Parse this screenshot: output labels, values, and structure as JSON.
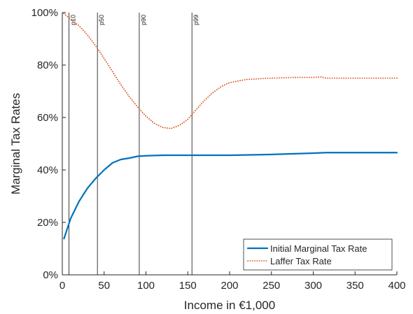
{
  "chart_data": {
    "type": "line",
    "xlabel": "Income in €1,000",
    "ylabel": "Marginal Tax Rates",
    "xlim": [
      0,
      400
    ],
    "ylim": [
      0,
      100
    ],
    "x_ticks": [
      0,
      50,
      100,
      150,
      200,
      250,
      300,
      350,
      400
    ],
    "y_ticks": [
      0,
      20,
      40,
      60,
      80,
      100
    ],
    "y_tick_format": "percent",
    "grid": false,
    "legend_position": "bottom-right",
    "percentile_markers": [
      {
        "label": "p10",
        "x": 8
      },
      {
        "label": "p50",
        "x": 42
      },
      {
        "label": "p90",
        "x": 92
      },
      {
        "label": "p99",
        "x": 155
      }
    ],
    "series": [
      {
        "name": "Initial Marginal Tax Rate",
        "color": "#0072BD",
        "style": "solid",
        "x": [
          2,
          10,
          20,
          30,
          40,
          50,
          60,
          70,
          80,
          90,
          100,
          120,
          150,
          200,
          250,
          300,
          315,
          350,
          400
        ],
        "y": [
          13.8,
          21.5,
          28,
          33,
          36.8,
          40,
          42.7,
          44,
          44.5,
          45.2,
          45.4,
          45.6,
          45.6,
          45.6,
          45.9,
          46.4,
          46.6,
          46.6,
          46.6
        ]
      },
      {
        "name": "Laffer Tax Rate",
        "color": "#D95319",
        "style": "dotted",
        "x": [
          2,
          5,
          10,
          20,
          30,
          40,
          50,
          60,
          70,
          80,
          90,
          100,
          110,
          120,
          130,
          140,
          150,
          160,
          170,
          180,
          190,
          200,
          220,
          250,
          280,
          300,
          310,
          315,
          320,
          350,
          400
        ],
        "y": [
          99.6,
          98.8,
          97.5,
          95,
          91.5,
          87.3,
          82.5,
          77.5,
          72.5,
          68,
          64,
          60.5,
          57.8,
          56.2,
          55.8,
          57,
          59.3,
          63,
          66.5,
          69.5,
          71.8,
          73.3,
          74.5,
          75,
          75.3,
          75.3,
          75.5,
          75,
          75,
          75,
          75
        ]
      }
    ]
  }
}
